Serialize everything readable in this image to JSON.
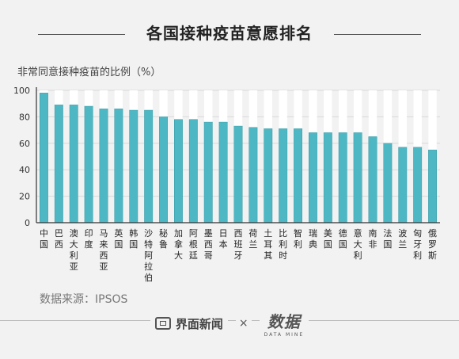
{
  "chart_data": {
    "type": "bar",
    "title": "各国接种疫苗意愿排名",
    "ylabel": "非常同意接种疫苗的比例（%）",
    "ylim": [
      0,
      100
    ],
    "yticks": [
      0,
      20,
      40,
      60,
      80,
      100
    ],
    "categories": [
      "中国",
      "巴西",
      "澳大利亚",
      "印度",
      "马来西亚",
      "英国",
      "韩国",
      "沙特阿拉伯",
      "秘鲁",
      "加拿大",
      "阿根廷",
      "墨西哥",
      "日本",
      "西班牙",
      "荷兰",
      "土耳其",
      "比利时",
      "智利",
      "瑞典",
      "美国",
      "德国",
      "意大利",
      "南非",
      "法国",
      "波兰",
      "匈牙利",
      "俄罗斯"
    ],
    "values": [
      98,
      89,
      89,
      88,
      86,
      86,
      85,
      85,
      80,
      78,
      78,
      76,
      76,
      73,
      72,
      71,
      71,
      71,
      68,
      68,
      68,
      68,
      65,
      60,
      57,
      57,
      55
    ],
    "colors": {
      "bar": "#4db8c4",
      "bar_edge": "#3a9aa5",
      "track": "#ffffff",
      "grid": "#d8d8d8",
      "axis": "#333333"
    },
    "grid": true,
    "legend": "none"
  },
  "source": "数据来源：IPSOS",
  "footer": {
    "brand": "界面新闻",
    "separator": "×",
    "partner": "数据",
    "partner_sub": "DATA MINE",
    "brand_icon": "news-box-icon"
  }
}
